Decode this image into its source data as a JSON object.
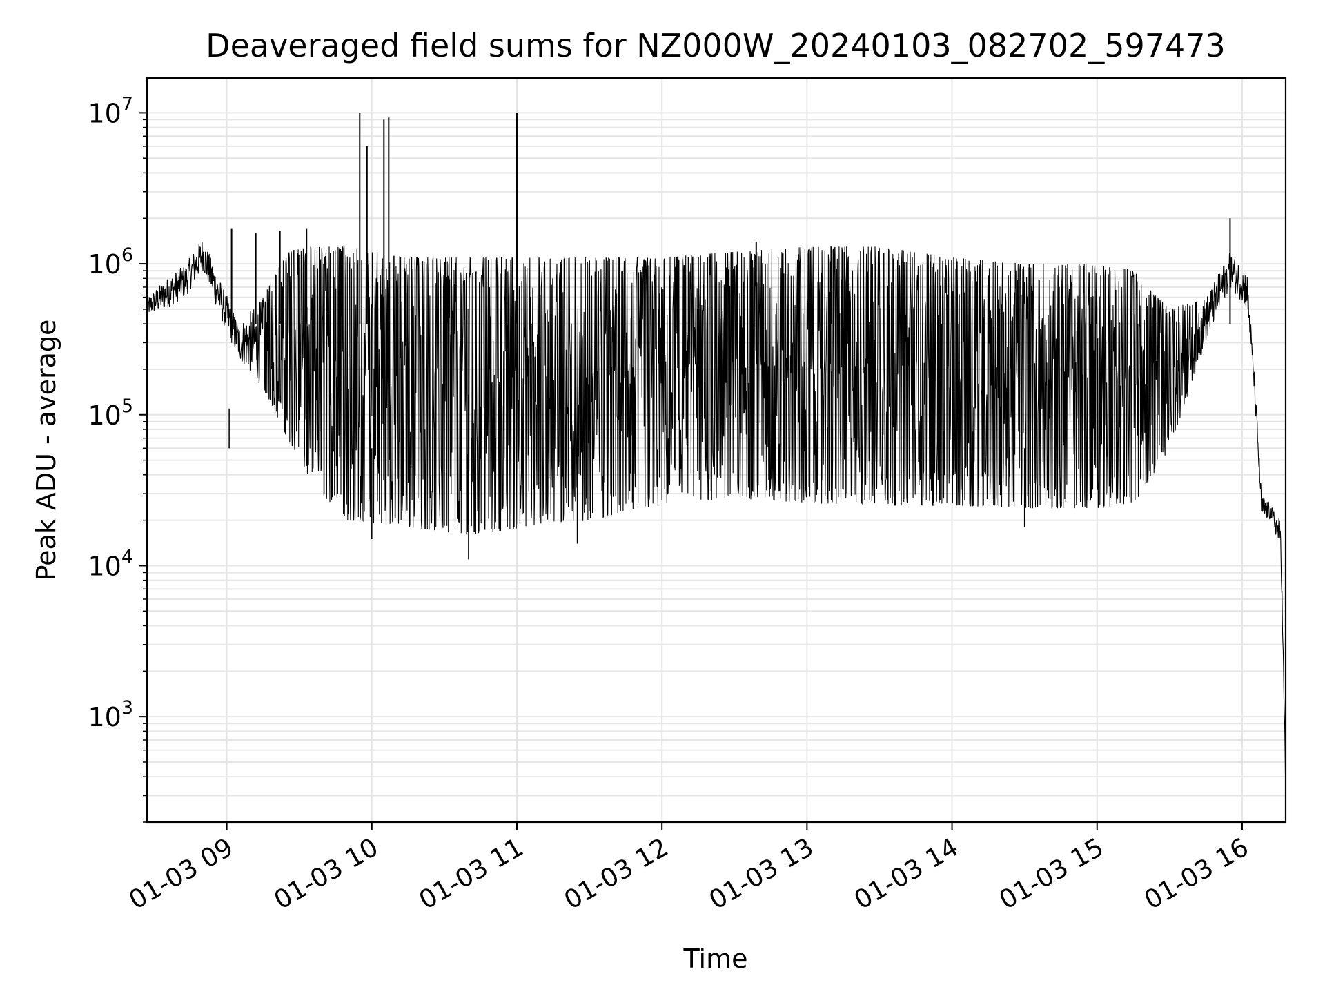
{
  "chart_data": {
    "type": "line",
    "title": "Deaveraged field sums for NZ000W_20240103_082702_597473",
    "xlabel": "Time",
    "ylabel": "Peak ADU - average",
    "xlim": [
      "2024-01-03 08:27",
      "2024-01-03 16:18"
    ],
    "ylim": [
      200,
      17000000
    ],
    "yscale": "log",
    "grid": true,
    "x_tick_labels": [
      "01-03 09",
      "01-03 10",
      "01-03 11",
      "01-03 12",
      "01-03 13",
      "01-03 14",
      "01-03 15",
      "01-03 16"
    ],
    "y_tick_labels": [
      {
        "base": "10",
        "exp": "3",
        "value": 1000
      },
      {
        "base": "10",
        "exp": "4",
        "value": 10000
      },
      {
        "base": "10",
        "exp": "5",
        "value": 100000
      },
      {
        "base": "10",
        "exp": "6",
        "value": 1000000
      },
      {
        "base": "10",
        "exp": "7",
        "value": 10000000
      }
    ],
    "series": [
      {
        "color": "#000000",
        "x": [
          "2024-01-03 08:27",
          "2024-01-03 08:35",
          "2024-01-03 08:43",
          "2024-01-03 08:50",
          "2024-01-03 08:57",
          "2024-01-03 09:05",
          "2024-01-03 09:15",
          "2024-01-03 09:25",
          "2024-01-03 09:35",
          "2024-01-03 09:50",
          "2024-01-03 10:15",
          "2024-01-03 10:40",
          "2024-01-03 11:05",
          "2024-01-03 11:30",
          "2024-01-03 12:00",
          "2024-01-03 12:30",
          "2024-01-03 13:00",
          "2024-01-03 13:30",
          "2024-01-03 14:00",
          "2024-01-03 14:30",
          "2024-01-03 15:00",
          "2024-01-03 15:15",
          "2024-01-03 15:30",
          "2024-01-03 15:45",
          "2024-01-03 15:55",
          "2024-01-03 16:02",
          "2024-01-03 16:05",
          "2024-01-03 16:08",
          "2024-01-03 16:12",
          "2024-01-03 16:16",
          "2024-01-03 16:18"
        ],
        "y": [
          500000,
          600000,
          800000,
          1200000,
          600000,
          350000,
          220000,
          120000,
          60000,
          35000,
          30000,
          28000,
          30000,
          35000,
          45000,
          50000,
          45000,
          42000,
          40000,
          40000,
          40000,
          40000,
          100000,
          400000,
          900000,
          600000,
          150000,
          25000,
          22000,
          15000,
          300
        ],
        "noise_low": [
          450000,
          500000,
          600000,
          900000,
          450000,
          230000,
          150000,
          70000,
          35000,
          20000,
          18000,
          16000,
          18000,
          20000,
          25000,
          28000,
          26000,
          25000,
          25000,
          24000,
          24000,
          25000,
          60000,
          300000,
          700000,
          500000,
          140000,
          20000,
          20000,
          12000,
          300
        ],
        "noise_high": [
          600000,
          800000,
          1000000,
          1500000,
          800000,
          400000,
          600000,
          1200000,
          1300000,
          1300000,
          1100000,
          1100000,
          1100000,
          1100000,
          1100000,
          1200000,
          1300000,
          1300000,
          1100000,
          1000000,
          1000000,
          900000,
          500000,
          600000,
          1200000,
          900000,
          200000,
          30000,
          25000,
          20000,
          400
        ],
        "spikes": [
          {
            "x": "2024-01-03 09:02",
            "y": 1700000
          },
          {
            "x": "2024-01-03 09:12",
            "y": 1600000
          },
          {
            "x": "2024-01-03 09:22",
            "y": 1650000
          },
          {
            "x": "2024-01-03 09:33",
            "y": 1700000
          },
          {
            "x": "2024-01-03 09:55",
            "y": 10000000
          },
          {
            "x": "2024-01-03 09:58",
            "y": 6000000
          },
          {
            "x": "2024-01-03 10:05",
            "y": 9000000
          },
          {
            "x": "2024-01-03 10:07",
            "y": 9300000
          },
          {
            "x": "2024-01-03 11:00",
            "y": 10000000
          },
          {
            "x": "2024-01-03 11:00",
            "y": 7300000
          },
          {
            "x": "2024-01-03 12:39",
            "y": 1400000
          },
          {
            "x": "2024-01-03 13:10",
            "y": 1300000
          },
          {
            "x": "2024-01-03 15:55",
            "y": 2000000
          }
        ],
        "dips": [
          {
            "x": "2024-01-03 09:01",
            "y": 110000
          },
          {
            "x": "2024-01-03 10:40",
            "y": 11000
          },
          {
            "x": "2024-01-03 11:25",
            "y": 14000
          },
          {
            "x": "2024-01-03 10:00",
            "y": 15000
          },
          {
            "x": "2024-01-03 14:30",
            "y": 18000
          }
        ]
      }
    ]
  }
}
